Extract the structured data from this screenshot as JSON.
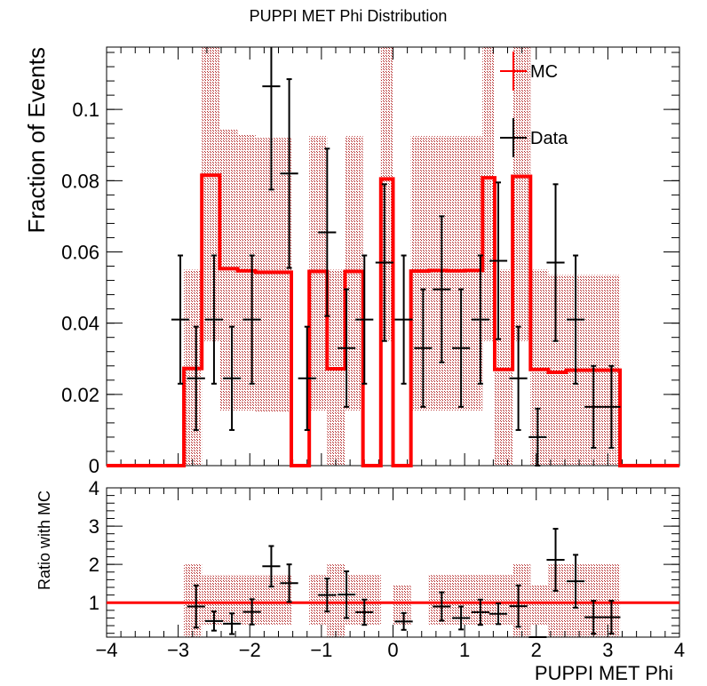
{
  "chart_data": [
    {
      "type": "step-histogram",
      "panel": "main",
      "title": "PUPPI MET Phi Distribution",
      "ylabel": "Fraction of Events",
      "xlabel": "",
      "xlim": [
        -4,
        4
      ],
      "ylim": [
        0,
        0.1175
      ],
      "y_ticks": [
        0,
        0.02,
        0.04,
        0.06,
        0.08,
        0.1
      ],
      "y_tick_labels": [
        "0",
        "0.02",
        "0.04",
        "0.06",
        "0.08",
        "0.1"
      ],
      "legend": {
        "position": "top-right",
        "entries": [
          "MC",
          "Data"
        ]
      },
      "bin_edges": [
        -4,
        -2.92,
        -2.67,
        -2.42,
        -2.17,
        -1.92,
        -1.67,
        -1.42,
        -1.17,
        -0.92,
        -0.67,
        -0.42,
        -0.17,
        0.0,
        0.25,
        0.5,
        0.75,
        1.0,
        1.25,
        1.42,
        1.67,
        1.92,
        2.17,
        2.42,
        2.67,
        2.92,
        3.17,
        4
      ],
      "series": [
        {
          "name": "MC",
          "color": "#ff0000",
          "values": [
            0,
            0.0273,
            0.0815,
            0.0553,
            0.0547,
            0.0543,
            0.0543,
            0,
            0.0545,
            0.0272,
            0.0545,
            0,
            0.0805,
            0,
            0.0546,
            0.0548,
            0.0547,
            0.0548,
            0.0808,
            0.027,
            0.0812,
            0.027,
            0.0262,
            0.0268,
            0.0268,
            0.0268,
            0
          ],
          "uncertainty_low": [
            0,
            0.0,
            0.035,
            0.0155,
            0.0155,
            0.015,
            0.015,
            0,
            0.0155,
            0.0,
            0.0155,
            0,
            0.035,
            0,
            0.0155,
            0.0155,
            0.0155,
            0.0155,
            0.035,
            0.0,
            0.035,
            0.0,
            0.0,
            0.0,
            0.0,
            0.0,
            0
          ],
          "uncertainty_high": [
            0,
            0.055,
            0.1175,
            0.0945,
            0.093,
            0.092,
            0.092,
            0,
            0.0925,
            0.055,
            0.0925,
            0,
            0.1175,
            0,
            0.0925,
            0.0925,
            0.0925,
            0.0925,
            0.1175,
            0.055,
            0.1175,
            0.055,
            0.0535,
            0.0535,
            0.0535,
            0.0535,
            0
          ]
        },
        {
          "name": "Data",
          "color": "#000000",
          "points": [
            {
              "x": -2.97,
              "xerr": 0.125,
              "y": 0.041,
              "yerr": 0.018
            },
            {
              "x": -2.75,
              "xerr": 0.125,
              "y": 0.0245,
              "yerr": 0.0145
            },
            {
              "x": -2.5,
              "xerr": 0.125,
              "y": 0.041,
              "yerr": 0.018
            },
            {
              "x": -2.25,
              "xerr": 0.125,
              "y": 0.0245,
              "yerr": 0.0145
            },
            {
              "x": -1.97,
              "xerr": 0.125,
              "y": 0.041,
              "yerr": 0.018
            },
            {
              "x": -1.7,
              "xerr": 0.125,
              "y": 0.1065,
              "yerr": 0.029
            },
            {
              "x": -1.45,
              "xerr": 0.125,
              "y": 0.082,
              "yerr": 0.0265
            },
            {
              "x": -1.2,
              "xerr": 0.125,
              "y": 0.0245,
              "yerr": 0.0145
            },
            {
              "x": -0.92,
              "xerr": 0.125,
              "y": 0.0655,
              "yerr": 0.0235
            },
            {
              "x": -0.65,
              "xerr": 0.125,
              "y": 0.033,
              "yerr": 0.0165
            },
            {
              "x": -0.4,
              "xerr": 0.125,
              "y": 0.041,
              "yerr": 0.018
            },
            {
              "x": -0.12,
              "xerr": 0.125,
              "y": 0.057,
              "yerr": 0.022
            },
            {
              "x": 0.15,
              "xerr": 0.125,
              "y": 0.041,
              "yerr": 0.018
            },
            {
              "x": 0.42,
              "xerr": 0.125,
              "y": 0.033,
              "yerr": 0.0165
            },
            {
              "x": 0.68,
              "xerr": 0.125,
              "y": 0.0495,
              "yerr": 0.0205
            },
            {
              "x": 0.95,
              "xerr": 0.125,
              "y": 0.033,
              "yerr": 0.0165
            },
            {
              "x": 1.22,
              "xerr": 0.125,
              "y": 0.041,
              "yerr": 0.018
            },
            {
              "x": 1.47,
              "xerr": 0.125,
              "y": 0.0575,
              "yerr": 0.022
            },
            {
              "x": 1.75,
              "xerr": 0.125,
              "y": 0.0245,
              "yerr": 0.0145
            },
            {
              "x": 2.02,
              "xerr": 0.125,
              "y": 0.008,
              "yerr": 0.008
            },
            {
              "x": 2.27,
              "xerr": 0.125,
              "y": 0.057,
              "yerr": 0.022
            },
            {
              "x": 2.55,
              "xerr": 0.125,
              "y": 0.041,
              "yerr": 0.018
            },
            {
              "x": 2.8,
              "xerr": 0.125,
              "y": 0.0165,
              "yerr": 0.0115
            },
            {
              "x": 3.05,
              "xerr": 0.125,
              "y": 0.0165,
              "yerr": 0.0115
            }
          ]
        }
      ]
    },
    {
      "type": "ratio",
      "panel": "ratio",
      "ylabel": "Ratio with MC",
      "xlabel": "PUPPI MET Phi",
      "xlim": [
        -4,
        4
      ],
      "ylim": [
        0.1,
        4
      ],
      "y_ticks": [
        1,
        2,
        3,
        4
      ],
      "y_tick_labels": [
        "1",
        "2",
        "3",
        "4"
      ],
      "x_ticks": [
        -4,
        -3,
        -2,
        -1,
        0,
        1,
        2,
        3,
        4
      ],
      "x_tick_labels": [
        "−4",
        "−3",
        "−2",
        "−1",
        "0",
        "1",
        "2",
        "3",
        "4"
      ],
      "reference_line": 1,
      "band": [
        {
          "x0": -2.92,
          "x1": -2.67,
          "low": 0.0,
          "high": 2.0
        },
        {
          "x0": -2.67,
          "x1": -1.42,
          "low": 0.43,
          "high": 1.71
        },
        {
          "x0": -1.17,
          "x1": -0.92,
          "low": 0.43,
          "high": 1.72
        },
        {
          "x0": -0.92,
          "x1": -0.67,
          "low": 0.0,
          "high": 2.0
        },
        {
          "x0": -0.67,
          "x1": -0.17,
          "low": 0.43,
          "high": 1.72
        },
        {
          "x0": 0.0,
          "x1": 0.25,
          "low": 0.43,
          "high": 1.45
        },
        {
          "x0": 0.5,
          "x1": 1.42,
          "low": 0.43,
          "high": 1.72
        },
        {
          "x0": 1.42,
          "x1": 1.67,
          "low": 0.43,
          "high": 1.72
        },
        {
          "x0": 1.67,
          "x1": 1.92,
          "low": 0.0,
          "high": 2.0
        },
        {
          "x0": 1.92,
          "x1": 2.17,
          "low": 0.43,
          "high": 1.45
        },
        {
          "x0": 2.17,
          "x1": 3.17,
          "low": 0.0,
          "high": 2.0
        }
      ],
      "points": [
        {
          "x": -2.75,
          "xerr": 0.125,
          "y": 0.9,
          "yerr": 0.55
        },
        {
          "x": -2.5,
          "xerr": 0.125,
          "y": 0.52,
          "yerr": 0.25
        },
        {
          "x": -2.25,
          "xerr": 0.125,
          "y": 0.45,
          "yerr": 0.27
        },
        {
          "x": -1.97,
          "xerr": 0.125,
          "y": 0.76,
          "yerr": 0.33
        },
        {
          "x": -1.7,
          "xerr": 0.125,
          "y": 1.95,
          "yerr": 0.53
        },
        {
          "x": -1.45,
          "xerr": 0.125,
          "y": 1.51,
          "yerr": 0.49
        },
        {
          "x": -0.92,
          "xerr": 0.125,
          "y": 1.2,
          "yerr": 0.43
        },
        {
          "x": -0.65,
          "xerr": 0.125,
          "y": 1.21,
          "yerr": 0.61
        },
        {
          "x": -0.4,
          "xerr": 0.125,
          "y": 0.75,
          "yerr": 0.33
        },
        {
          "x": 0.15,
          "xerr": 0.125,
          "y": 0.51,
          "yerr": 0.22
        },
        {
          "x": 0.68,
          "xerr": 0.125,
          "y": 0.9,
          "yerr": 0.37
        },
        {
          "x": 0.95,
          "xerr": 0.125,
          "y": 0.6,
          "yerr": 0.3
        },
        {
          "x": 1.22,
          "xerr": 0.125,
          "y": 0.75,
          "yerr": 0.33
        },
        {
          "x": 1.47,
          "xerr": 0.125,
          "y": 0.71,
          "yerr": 0.27
        },
        {
          "x": 1.75,
          "xerr": 0.125,
          "y": 0.91,
          "yerr": 0.54
        },
        {
          "x": 2.02,
          "xerr": 0.125,
          "y": 0.1,
          "yerr": 0.0
        },
        {
          "x": 2.27,
          "xerr": 0.125,
          "y": 2.12,
          "yerr": 0.81
        },
        {
          "x": 2.55,
          "xerr": 0.125,
          "y": 1.56,
          "yerr": 0.69
        },
        {
          "x": 2.8,
          "xerr": 0.125,
          "y": 0.62,
          "yerr": 0.43
        },
        {
          "x": 3.05,
          "xerr": 0.125,
          "y": 0.62,
          "yerr": 0.43
        }
      ]
    }
  ]
}
